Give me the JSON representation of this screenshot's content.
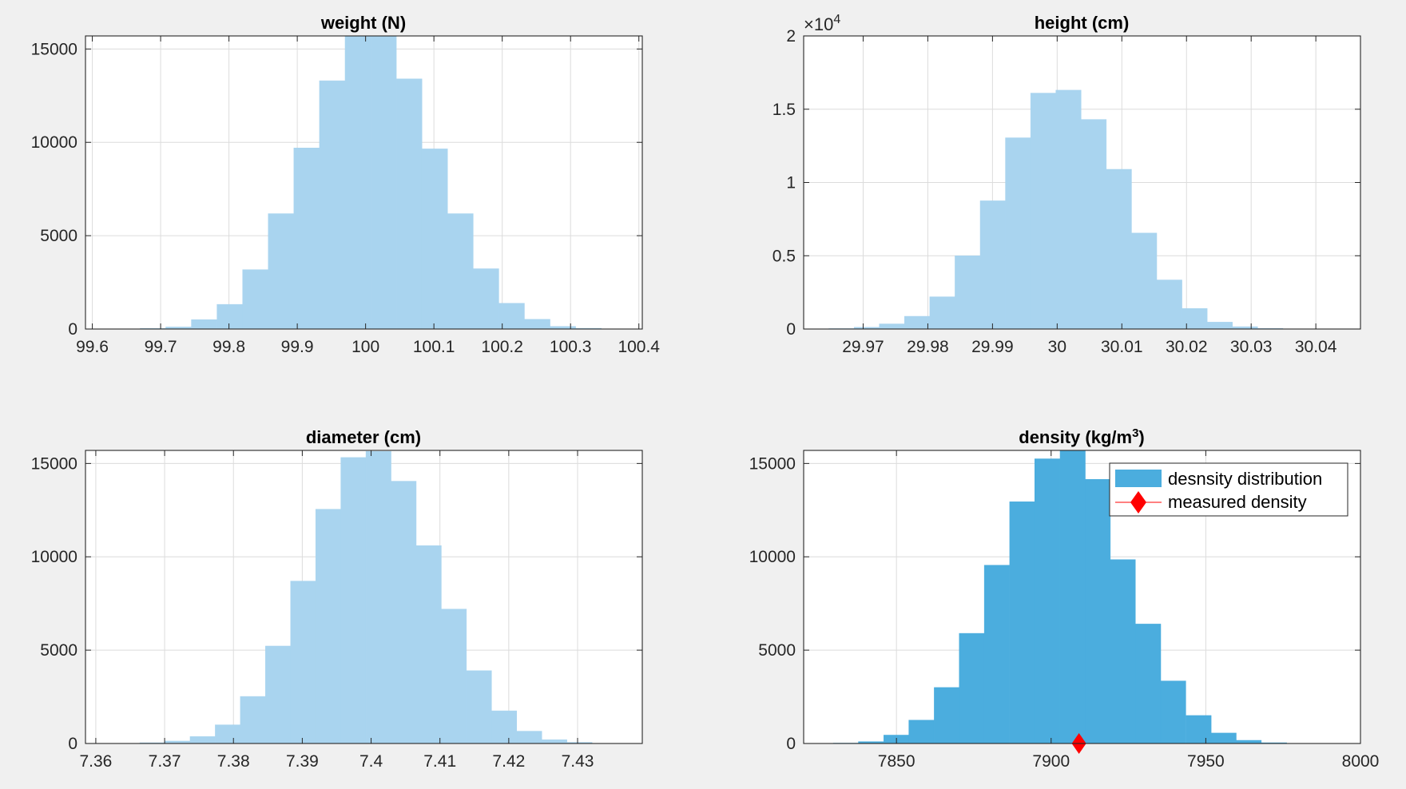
{
  "chart_data": [
    {
      "id": "weight",
      "type": "bar",
      "title": "weight (N)",
      "xlabel": "",
      "ylabel": "",
      "xlim": [
        99.59,
        100.405
      ],
      "ylim": [
        0,
        15700
      ],
      "grid": true,
      "bin_width": 0.0375,
      "xticks": [
        99.6,
        99.7,
        99.8,
        99.9,
        100,
        100.1,
        100.2,
        100.3,
        100.4
      ],
      "xtick_labels": [
        "99.6",
        "99.7",
        "99.8",
        "99.9",
        "100",
        "100.1",
        "100.2",
        "100.3",
        "100.4"
      ],
      "yticks": [
        0,
        5000,
        10000,
        15000
      ],
      "ytick_labels": [
        "0",
        "5000",
        "10000",
        "15000"
      ],
      "bar_color": "#a9d4ef",
      "bins": [
        {
          "left": 99.6325,
          "value": 10
        },
        {
          "left": 99.67,
          "value": 30
        },
        {
          "left": 99.7075,
          "value": 110
        },
        {
          "left": 99.745,
          "value": 500
        },
        {
          "left": 99.7825,
          "value": 1320
        },
        {
          "left": 99.82,
          "value": 3180
        },
        {
          "left": 99.8575,
          "value": 6180
        },
        {
          "left": 99.895,
          "value": 9700
        },
        {
          "left": 99.9325,
          "value": 13300
        },
        {
          "left": 99.97,
          "value": 15700
        },
        {
          "left": 100.0075,
          "value": 15700
        },
        {
          "left": 100.045,
          "value": 13400
        },
        {
          "left": 100.0825,
          "value": 9650
        },
        {
          "left": 100.12,
          "value": 6180
        },
        {
          "left": 100.1575,
          "value": 3230
        },
        {
          "left": 100.195,
          "value": 1380
        },
        {
          "left": 100.2325,
          "value": 520
        },
        {
          "left": 100.27,
          "value": 140
        },
        {
          "left": 100.3075,
          "value": 40
        },
        {
          "left": 100.345,
          "value": 10
        }
      ]
    },
    {
      "id": "height",
      "type": "bar",
      "title": "height (cm)",
      "xlabel": "",
      "ylabel": "",
      "xlim": [
        29.9608,
        30.0469
      ],
      "ylim": [
        0,
        20000
      ],
      "grid": true,
      "bin_width": 0.0039,
      "xticks": [
        29.97,
        29.98,
        29.99,
        30,
        30.01,
        30.02,
        30.03,
        30.04
      ],
      "xtick_labels": [
        "29.97",
        "29.98",
        "29.99",
        "30",
        "30.01",
        "30.02",
        "30.03",
        "30.04"
      ],
      "yticks": [
        0,
        5000,
        10000,
        15000,
        20000
      ],
      "ytick_labels": [
        "0",
        "0.5",
        "1",
        "1.5",
        "2"
      ],
      "y_exponent_base": "×10",
      "y_exponent_power": "4",
      "bar_color": "#a9d4ef",
      "bins": [
        {
          "left": 29.9647,
          "value": 30
        },
        {
          "left": 29.9686,
          "value": 120
        },
        {
          "left": 29.9725,
          "value": 350
        },
        {
          "left": 29.9764,
          "value": 870
        },
        {
          "left": 29.9803,
          "value": 2200
        },
        {
          "left": 29.9842,
          "value": 5000
        },
        {
          "left": 29.9881,
          "value": 8750
        },
        {
          "left": 29.992,
          "value": 13050
        },
        {
          "left": 29.9959,
          "value": 16100
        },
        {
          "left": 29.9998,
          "value": 16300
        },
        {
          "left": 30.0037,
          "value": 14300
        },
        {
          "left": 30.0076,
          "value": 10900
        },
        {
          "left": 30.0115,
          "value": 6550
        },
        {
          "left": 30.0154,
          "value": 3350
        },
        {
          "left": 30.0193,
          "value": 1400
        },
        {
          "left": 30.0232,
          "value": 470
        },
        {
          "left": 30.0271,
          "value": 160
        },
        {
          "left": 30.031,
          "value": 40
        },
        {
          "left": 30.0349,
          "value": 10
        }
      ]
    },
    {
      "id": "diameter",
      "type": "bar",
      "title": "diameter (cm)",
      "xlabel": "",
      "ylabel": "",
      "xlim": [
        7.3585,
        7.4394
      ],
      "ylim": [
        0,
        15700
      ],
      "grid": true,
      "bin_width": 0.00365,
      "xticks": [
        7.36,
        7.37,
        7.38,
        7.39,
        7.4,
        7.41,
        7.42,
        7.43
      ],
      "xtick_labels": [
        "7.36",
        "7.37",
        "7.38",
        "7.39",
        "7.4",
        "7.41",
        "7.42",
        "7.43"
      ],
      "yticks": [
        0,
        5000,
        10000,
        15000
      ],
      "ytick_labels": [
        "0",
        "5000",
        "10000",
        "15000"
      ],
      "bar_color": "#a9d4ef",
      "bins": [
        {
          "left": 7.36275,
          "value": 10
        },
        {
          "left": 7.3664,
          "value": 40
        },
        {
          "left": 7.37005,
          "value": 130
        },
        {
          "left": 7.3737,
          "value": 370
        },
        {
          "left": 7.37735,
          "value": 1000
        },
        {
          "left": 7.381,
          "value": 2520
        },
        {
          "left": 7.38465,
          "value": 5220
        },
        {
          "left": 7.3883,
          "value": 8700
        },
        {
          "left": 7.39195,
          "value": 12550
        },
        {
          "left": 7.3956,
          "value": 15320
        },
        {
          "left": 7.39925,
          "value": 15650
        },
        {
          "left": 7.4029,
          "value": 14050
        },
        {
          "left": 7.40655,
          "value": 10600
        },
        {
          "left": 7.4102,
          "value": 7200
        },
        {
          "left": 7.41385,
          "value": 3900
        },
        {
          "left": 7.4175,
          "value": 1750
        },
        {
          "left": 7.42115,
          "value": 660
        },
        {
          "left": 7.4248,
          "value": 200
        },
        {
          "left": 7.42845,
          "value": 60
        },
        {
          "left": 7.4321,
          "value": 10
        }
      ]
    },
    {
      "id": "density",
      "type": "bar",
      "title": "density (kg/m",
      "title_superscript": "3",
      "title_suffix": ")",
      "xlabel": "",
      "ylabel": "",
      "xlim": [
        7820,
        8000
      ],
      "ylim": [
        0,
        15700
      ],
      "grid": true,
      "bin_width": 8.14,
      "xticks": [
        7850,
        7900,
        7950,
        8000
      ],
      "xtick_labels": [
        "7850",
        "7900",
        "7950",
        "8000"
      ],
      "yticks": [
        0,
        5000,
        10000,
        15000
      ],
      "ytick_labels": [
        "0",
        "5000",
        "10000",
        "15000"
      ],
      "bar_color": "#4badde",
      "bins": [
        {
          "left": 7829.6,
          "value": 20
        },
        {
          "left": 7837.7,
          "value": 100
        },
        {
          "left": 7845.9,
          "value": 450
        },
        {
          "left": 7854.0,
          "value": 1250
        },
        {
          "left": 7862.2,
          "value": 3000
        },
        {
          "left": 7870.3,
          "value": 5900
        },
        {
          "left": 7878.4,
          "value": 9550
        },
        {
          "left": 7886.6,
          "value": 12950
        },
        {
          "left": 7894.7,
          "value": 15250
        },
        {
          "left": 7902.9,
          "value": 15700
        },
        {
          "left": 7911.0,
          "value": 14150
        },
        {
          "left": 7919.1,
          "value": 9850
        },
        {
          "left": 7927.3,
          "value": 6400
        },
        {
          "left": 7935.4,
          "value": 3350
        },
        {
          "left": 7943.6,
          "value": 1500
        },
        {
          "left": 7951.7,
          "value": 560
        },
        {
          "left": 7959.8,
          "value": 170
        },
        {
          "left": 7968.0,
          "value": 40
        }
      ],
      "marker": {
        "x": 7909,
        "y": 0,
        "shape": "diamond",
        "color": "#ff0000"
      },
      "legend": {
        "position": "top-right",
        "entries": [
          {
            "label": "desnsity distribution",
            "kind": "patch",
            "color": "#4badde"
          },
          {
            "label": "measured density",
            "kind": "line-diamond",
            "color": "#ff0000"
          }
        ]
      }
    }
  ]
}
